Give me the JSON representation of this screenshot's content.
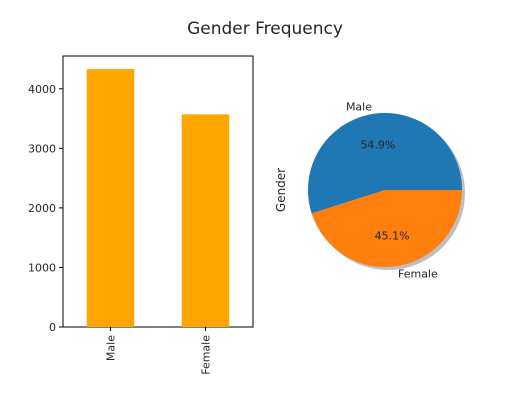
{
  "figure": {
    "title": "Gender Frequency"
  },
  "chart_data": [
    {
      "type": "bar",
      "categories": [
        "Male",
        "Female"
      ],
      "values": [
        4330,
        3570
      ],
      "ylim": [
        0,
        4550
      ],
      "yticks": [
        0,
        1000,
        2000,
        3000,
        4000
      ],
      "bar_color": "#ffa500",
      "grid": false
    },
    {
      "type": "pie",
      "labels": [
        "Male",
        "Female"
      ],
      "values": [
        54.9,
        45.1
      ],
      "pct_labels": [
        "54.9%",
        "45.1%"
      ],
      "colors": [
        "#1f77b4",
        "#ff7f0e"
      ],
      "ylabel": "Gender",
      "shadow": true
    }
  ]
}
